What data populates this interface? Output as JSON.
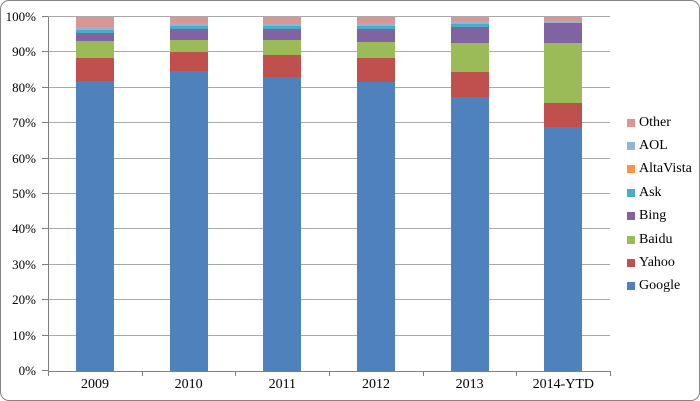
{
  "chart_data": {
    "type": "bar",
    "stacked": true,
    "title": "",
    "xlabel": "",
    "ylabel": "",
    "categories": [
      "2009",
      "2010",
      "2011",
      "2012",
      "2013",
      "2014-YTD"
    ],
    "series": [
      {
        "name": "Google",
        "color": "#4F81BD",
        "values": [
          81.8,
          84.7,
          83.0,
          81.6,
          77.5,
          69.0
        ]
      },
      {
        "name": "Yahoo",
        "color": "#C0504D",
        "values": [
          6.6,
          5.3,
          6.4,
          6.9,
          7.1,
          6.6
        ]
      },
      {
        "name": "Baidu",
        "color": "#9BBB59",
        "values": [
          4.9,
          3.6,
          4.2,
          4.5,
          8.0,
          17.0
        ]
      },
      {
        "name": "Bing",
        "color": "#8064A2",
        "values": [
          2.1,
          3.0,
          3.1,
          3.7,
          4.7,
          5.7
        ]
      },
      {
        "name": "Ask",
        "color": "#4BACC6",
        "values": [
          0.8,
          0.8,
          0.7,
          0.8,
          0.7,
          0.1
        ]
      },
      {
        "name": "AltaVista",
        "color": "#F79646",
        "values": [
          0.1,
          0.1,
          0.1,
          0.1,
          0.1,
          0.0
        ]
      },
      {
        "name": "AOL",
        "color": "#95B3D7",
        "values": [
          0.9,
          0.7,
          0.6,
          0.7,
          0.7,
          0.6
        ]
      },
      {
        "name": "Other",
        "color": "#D99694",
        "values": [
          2.8,
          1.8,
          1.9,
          1.7,
          1.2,
          1.0
        ]
      }
    ],
    "legend_order_top_to_bottom": [
      "Other",
      "AOL",
      "AltaVista",
      "Ask",
      "Bing",
      "Baidu",
      "Yahoo",
      "Google"
    ],
    "y_tick_labels": [
      "0%",
      "10%",
      "20%",
      "30%",
      "40%",
      "50%",
      "60%",
      "70%",
      "80%",
      "90%",
      "100%"
    ],
    "ylim": [
      0,
      100
    ],
    "grid": true,
    "legend_position": "right"
  }
}
